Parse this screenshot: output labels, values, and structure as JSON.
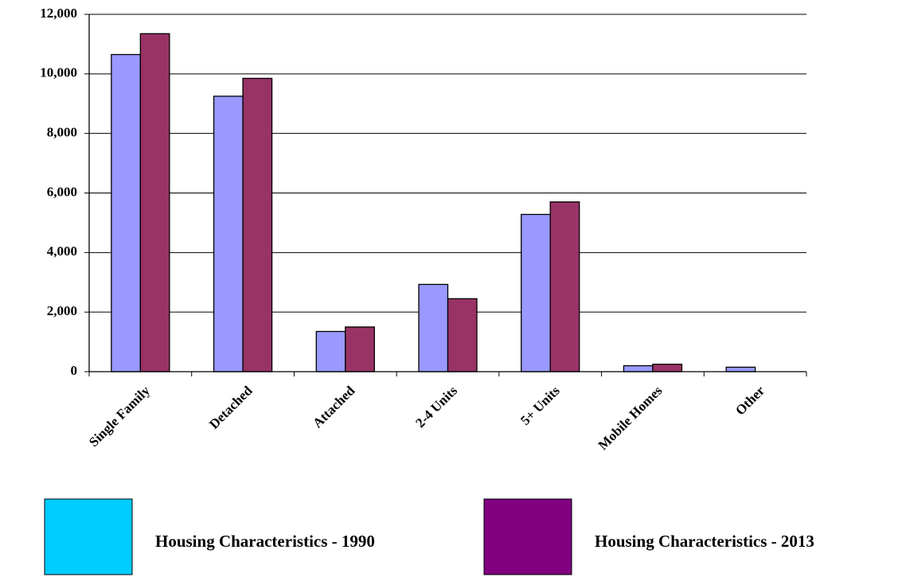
{
  "chart_data": {
    "type": "bar",
    "categories": [
      "Single Family",
      "Detached",
      "Attached",
      "2-4 Units",
      "5+ Units",
      "Mobile Homes",
      "Other"
    ],
    "series": [
      {
        "name": "Housing Characteristics - 1990",
        "color": "#9999ff",
        "legend_color": "#00ccff",
        "values": [
          10650,
          9250,
          1350,
          2930,
          5280,
          200,
          150
        ]
      },
      {
        "name": "Housing Characteristics - 2013",
        "color": "#993366",
        "legend_color": "#800080",
        "values": [
          11350,
          9850,
          1500,
          2450,
          5700,
          250,
          0
        ]
      }
    ],
    "ylim": [
      0,
      12000
    ],
    "yticks": [
      0,
      {
        "value": 2000,
        "label": "2,000"
      },
      {
        "value": 4000,
        "label": "4,000"
      },
      {
        "value": 6000,
        "label": "6,000"
      },
      {
        "value": 8000,
        "label": "8,000"
      },
      {
        "value": 10000,
        "label": "10,000"
      },
      {
        "value": 12000,
        "label": "12,000"
      }
    ],
    "grid": true,
    "legend": "bottom"
  }
}
